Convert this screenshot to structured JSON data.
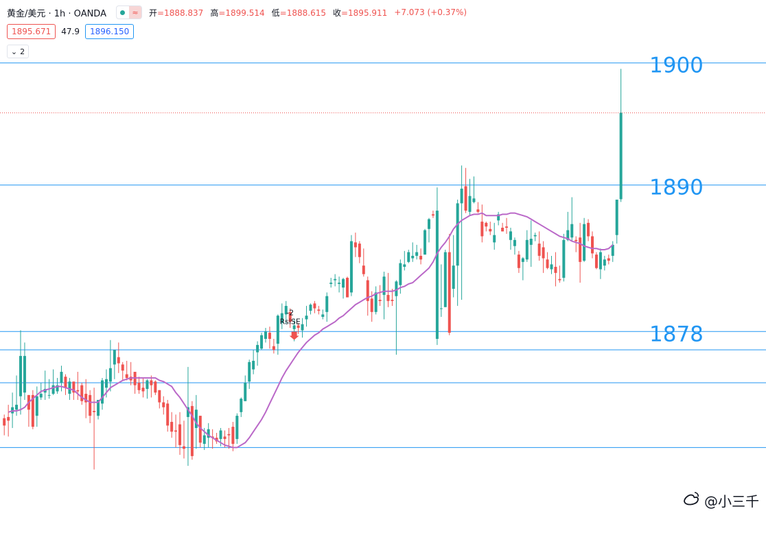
{
  "header": {
    "symbol": "黄金/美元 · 1h · OANDA",
    "ohlc": [
      {
        "label": "开",
        "value": "=1888.837"
      },
      {
        "label": "高",
        "value": "=1899.514"
      },
      {
        "label": "低",
        "value": "=1888.615"
      },
      {
        "label": "收",
        "value": "=1895.911"
      }
    ],
    "change": "+7.073 (+0.37%)"
  },
  "quote": {
    "bid": "1895.671",
    "spread": "47.9",
    "ask": "1896.150"
  },
  "collapse_count": "2",
  "watermark": "@小三千",
  "signal": {
    "count": "-2",
    "name": "RsiSE"
  },
  "colors": {
    "up": "#26a69a",
    "down": "#ef5350",
    "ma": "#ba68c8",
    "level": "#2196f3",
    "current": "#ef5350"
  },
  "chart_data": {
    "type": "candlestick",
    "symbol": "XAU/USD",
    "interval": "1h",
    "ylim": [
      1861.5,
      1901.5
    ],
    "current_price": 1895.911,
    "levels": [
      {
        "value": 1900,
        "label": "1900"
      },
      {
        "value": 1890,
        "label": "1890"
      },
      {
        "value": 1878,
        "label": "1878"
      },
      {
        "value": 1876.5,
        "label": ""
      },
      {
        "value": 1873.8,
        "label": ""
      },
      {
        "value": 1868.5,
        "label": ""
      }
    ],
    "candles": [
      [
        1870.9,
        1871.2,
        1869.5,
        1870.3
      ],
      [
        1871.0,
        1872.0,
        1869.4,
        1870.7
      ],
      [
        1871.3,
        1873.0,
        1870.1,
        1871.8
      ],
      [
        1871.6,
        1874.4,
        1871.1,
        1872.0
      ],
      [
        1872.7,
        1878.1,
        1871.2,
        1876.0
      ],
      [
        1873.0,
        1877.1,
        1872.4,
        1876.0
      ],
      [
        1872.8,
        1872.8,
        1870.2,
        1871.6
      ],
      [
        1872.8,
        1873.2,
        1870.0,
        1870.2
      ],
      [
        1871.1,
        1873.5,
        1870.2,
        1872.7
      ],
      [
        1872.6,
        1873.8,
        1872.4,
        1872.9
      ],
      [
        1873.0,
        1874.8,
        1872.4,
        1873.3
      ],
      [
        1872.8,
        1874.1,
        1872.5,
        1872.8
      ],
      [
        1872.9,
        1874.9,
        1872.8,
        1873.6
      ],
      [
        1873.1,
        1874.2,
        1872.9,
        1873.6
      ],
      [
        1873.8,
        1875.2,
        1873.1,
        1874.7
      ],
      [
        1874.3,
        1874.5,
        1872.8,
        1873.4
      ],
      [
        1872.9,
        1874.2,
        1872.4,
        1873.9
      ],
      [
        1873.9,
        1873.9,
        1872.4,
        1873.0
      ],
      [
        1873.2,
        1874.7,
        1872.4,
        1873.1
      ],
      [
        1873.6,
        1873.8,
        1872.0,
        1872.3
      ],
      [
        1872.9,
        1874.1,
        1870.9,
        1872.2
      ],
      [
        1872.8,
        1873.2,
        1870.5,
        1871.1
      ],
      [
        1871.5,
        1873.4,
        1866.7,
        1871.4
      ],
      [
        1871.1,
        1872.4,
        1870.8,
        1872.4
      ],
      [
        1872.1,
        1874.2,
        1871.6,
        1874.0
      ],
      [
        1873.4,
        1874.9,
        1872.6,
        1874.1
      ],
      [
        1873.9,
        1877.3,
        1873.1,
        1875.0
      ],
      [
        1875.3,
        1876.5,
        1874.1,
        1876.5
      ],
      [
        1875.9,
        1877.1,
        1874.6,
        1875.4
      ],
      [
        1875.3,
        1875.5,
        1874.0,
        1874.8
      ],
      [
        1874.5,
        1875.6,
        1874.0,
        1874.2
      ],
      [
        1874.3,
        1875.5,
        1873.6,
        1874.0
      ],
      [
        1874.7,
        1874.7,
        1872.9,
        1873.6
      ],
      [
        1873.8,
        1874.3,
        1872.9,
        1873.2
      ],
      [
        1873.4,
        1874.2,
        1872.6,
        1873.1
      ],
      [
        1873.3,
        1874.1,
        1872.5,
        1874.0
      ],
      [
        1874.0,
        1874.4,
        1872.6,
        1873.6
      ],
      [
        1873.9,
        1874.0,
        1872.8,
        1873.0
      ],
      [
        1873.2,
        1873.2,
        1871.7,
        1872.2
      ],
      [
        1872.2,
        1872.7,
        1871.2,
        1871.8
      ],
      [
        1872.1,
        1872.4,
        1869.8,
        1870.3
      ],
      [
        1870.6,
        1871.4,
        1869.3,
        1869.8
      ],
      [
        1869.9,
        1871.2,
        1868.5,
        1869.8
      ],
      [
        1870.4,
        1871.4,
        1867.9,
        1868.7
      ],
      [
        1868.6,
        1870.7,
        1867.6,
        1868.4
      ],
      [
        1871.0,
        1875.1,
        1867.0,
        1871.8
      ],
      [
        1871.9,
        1872.3,
        1867.5,
        1867.8
      ],
      [
        1870.1,
        1872.8,
        1868.4,
        1871.6
      ],
      [
        1871.1,
        1871.1,
        1868.5,
        1868.9
      ],
      [
        1868.8,
        1870.1,
        1868.3,
        1869.5
      ],
      [
        1869.3,
        1870.5,
        1868.5,
        1870.0
      ],
      [
        1869.4,
        1870.0,
        1868.4,
        1869.3
      ],
      [
        1869.3,
        1869.7,
        1868.8,
        1869.0
      ],
      [
        1869.2,
        1870.1,
        1868.6,
        1869.9
      ],
      [
        1869.4,
        1869.9,
        1868.5,
        1869.2
      ],
      [
        1869.6,
        1870.1,
        1868.4,
        1869.5
      ],
      [
        1870.2,
        1870.6,
        1868.2,
        1868.8
      ],
      [
        1869.2,
        1871.3,
        1868.8,
        1871.1
      ],
      [
        1871.4,
        1872.6,
        1871.0,
        1872.5
      ],
      [
        1872.3,
        1874.4,
        1872.3,
        1873.8
      ],
      [
        1873.9,
        1875.7,
        1873.3,
        1875.5
      ],
      [
        1874.9,
        1876.5,
        1874.5,
        1875.6
      ],
      [
        1876.3,
        1877.2,
        1875.2,
        1876.9
      ],
      [
        1876.6,
        1877.9,
        1876.5,
        1877.7
      ],
      [
        1877.4,
        1878.3,
        1877.1,
        1878.0
      ],
      [
        1877.9,
        1878.4,
        1876.6,
        1877.4
      ],
      [
        1876.8,
        1877.4,
        1876.2,
        1876.5
      ],
      [
        1877.0,
        1879.4,
        1876.1,
        1879.3
      ],
      [
        1878.7,
        1880.3,
        1878.2,
        1879.5
      ],
      [
        1879.4,
        1880.5,
        1878.6,
        1880.1
      ],
      [
        1879.6,
        1879.9,
        1878.3,
        1878.8
      ],
      [
        1878.2,
        1879.0,
        1877.2,
        1878.5
      ],
      [
        1878.5,
        1878.7,
        1877.8,
        1878.3
      ],
      [
        1878.1,
        1879.1,
        1877.5,
        1878.6
      ],
      [
        1879.0,
        1880.1,
        1878.4,
        1879.3
      ],
      [
        1879.7,
        1880.3,
        1879.4,
        1880.2
      ],
      [
        1880.3,
        1880.5,
        1879.5,
        1879.9
      ],
      [
        1879.8,
        1880.1,
        1879.4,
        1879.7
      ],
      [
        1879.2,
        1879.8,
        1879.0,
        1879.4
      ],
      [
        1879.6,
        1881.2,
        1878.8,
        1880.9
      ],
      [
        1881.9,
        1882.4,
        1881.6,
        1882.0
      ],
      [
        1882.2,
        1882.7,
        1881.7,
        1882.3
      ],
      [
        1881.9,
        1882.5,
        1881.2,
        1882.0
      ],
      [
        1881.6,
        1882.4,
        1880.7,
        1882.3
      ],
      [
        1882.4,
        1882.5,
        1880.8,
        1880.8
      ],
      [
        1881.2,
        1885.9,
        1880.9,
        1885.4
      ],
      [
        1885.3,
        1886.1,
        1884.1,
        1884.9
      ],
      [
        1885.2,
        1885.4,
        1883.6,
        1884.1
      ],
      [
        1883.4,
        1884.8,
        1882.5,
        1882.7
      ],
      [
        1882.2,
        1882.5,
        1879.3,
        1880.5
      ],
      [
        1880.7,
        1881.3,
        1878.8,
        1879.6
      ],
      [
        1879.6,
        1881.7,
        1879.4,
        1881.2
      ],
      [
        1880.6,
        1881.8,
        1880.1,
        1880.5
      ],
      [
        1881.0,
        1882.9,
        1879.0,
        1882.5
      ],
      [
        1881.0,
        1882.8,
        1880.0,
        1880.5
      ],
      [
        1880.6,
        1881.5,
        1880.1,
        1880.5
      ],
      [
        1880.9,
        1882.2,
        1876.1,
        1882.1
      ],
      [
        1881.8,
        1883.9,
        1881.1,
        1883.6
      ],
      [
        1883.3,
        1884.6,
        1883.0,
        1883.5
      ],
      [
        1883.7,
        1884.7,
        1883.6,
        1884.5
      ],
      [
        1884.0,
        1885.3,
        1883.7,
        1884.2
      ],
      [
        1884.2,
        1885.1,
        1883.9,
        1884.5
      ],
      [
        1884.2,
        1884.8,
        1883.5,
        1883.9
      ],
      [
        1884.3,
        1886.4,
        1884.3,
        1886.3
      ],
      [
        1886.4,
        1887.3,
        1885.3,
        1887.2
      ],
      [
        1887.6,
        1887.9,
        1887.3,
        1887.5
      ],
      [
        1877.4,
        1889.8,
        1876.9,
        1887.9
      ],
      [
        1879.9,
        1883.5,
        1879.2,
        1879.9
      ],
      [
        1880.0,
        1884.7,
        1880.0,
        1884.5
      ],
      [
        1884.5,
        1886.0,
        1877.7,
        1877.9
      ],
      [
        1881.5,
        1885.9,
        1880.8,
        1883.4
      ],
      [
        1883.4,
        1888.8,
        1880.1,
        1888.5
      ],
      [
        1888.5,
        1891.6,
        1880.6,
        1889.7
      ],
      [
        1889.9,
        1891.4,
        1887.7,
        1887.9
      ],
      [
        1887.8,
        1890.5,
        1887.5,
        1889.1
      ],
      [
        1888.6,
        1890.7,
        1888.5,
        1888.9
      ],
      [
        1888.0,
        1888.6,
        1887.7,
        1887.8
      ],
      [
        1887.0,
        1888.4,
        1885.3,
        1885.8
      ],
      [
        1886.9,
        1887.0,
        1886.2,
        1886.6
      ],
      [
        1886.4,
        1887.0,
        1885.9,
        1886.2
      ],
      [
        1885.3,
        1886.9,
        1884.7,
        1885.9
      ],
      [
        1887.1,
        1887.8,
        1886.7,
        1887.6
      ],
      [
        1886.5,
        1886.9,
        1886.2,
        1886.2
      ],
      [
        1886.6,
        1887.3,
        1886.0,
        1886.5
      ],
      [
        1885.5,
        1886.5,
        1884.7,
        1886.2
      ],
      [
        1885.0,
        1885.7,
        1884.3,
        1885.5
      ],
      [
        1884.3,
        1884.6,
        1882.8,
        1883.2
      ],
      [
        1883.7,
        1884.1,
        1882.2,
        1884.0
      ],
      [
        1883.9,
        1886.3,
        1883.7,
        1885.5
      ],
      [
        1885.1,
        1887.1,
        1883.3,
        1885.6
      ],
      [
        1885.8,
        1886.1,
        1885.4,
        1885.9
      ],
      [
        1885.2,
        1886.2,
        1883.8,
        1884.2
      ],
      [
        1884.9,
        1885.4,
        1882.8,
        1884.0
      ],
      [
        1883.9,
        1884.5,
        1883.1,
        1883.2
      ],
      [
        1883.1,
        1884.2,
        1882.7,
        1883.5
      ],
      [
        1883.3,
        1884.5,
        1881.7,
        1882.8
      ],
      [
        1882.3,
        1883.4,
        1882.0,
        1882.2
      ],
      [
        1882.4,
        1886.0,
        1882.1,
        1885.5
      ],
      [
        1885.5,
        1887.8,
        1885.4,
        1886.3
      ],
      [
        1885.7,
        1889.0,
        1885.4,
        1886.8
      ],
      [
        1885.5,
        1885.8,
        1884.5,
        1885.4
      ],
      [
        1885.7,
        1886.9,
        1882.0,
        1883.7
      ],
      [
        1883.8,
        1887.3,
        1883.7,
        1886.8
      ],
      [
        1886.9,
        1887.2,
        1885.4,
        1885.8
      ],
      [
        1885.8,
        1886.2,
        1884.0,
        1884.4
      ],
      [
        1884.3,
        1884.5,
        1883.1,
        1883.2
      ],
      [
        1883.1,
        1884.8,
        1882.3,
        1884.5
      ],
      [
        1883.4,
        1884.2,
        1883.0,
        1883.9
      ],
      [
        1884.0,
        1884.3,
        1883.5,
        1883.8
      ],
      [
        1884.2,
        1885.4,
        1883.7,
        1885.1
      ],
      [
        1885.9,
        1888.8,
        1885.2,
        1888.8
      ],
      [
        1888.837,
        1899.514,
        1888.615,
        1895.911
      ]
    ],
    "ma_start_index": 1,
    "ma": [
      1871.4,
      1871.5,
      1871.5,
      1871.6,
      1871.8,
      1872.2,
      1872.5,
      1872.8,
      1873.1,
      1873.2,
      1873.3,
      1873.4,
      1873.5,
      1873.5,
      1873.4,
      1873.3,
      1873.2,
      1872.9,
      1872.6,
      1872.4,
      1872.2,
      1872.2,
      1872.2,
      1872.6,
      1873.0,
      1873.4,
      1873.6,
      1873.8,
      1874.0,
      1874.1,
      1874.2,
      1874.2,
      1874.2,
      1874.2,
      1874.2,
      1874.2,
      1874.2,
      1874.0,
      1873.9,
      1873.7,
      1873.5,
      1873.0,
      1872.6,
      1872.1,
      1871.6,
      1871.1,
      1870.5,
      1870.1,
      1869.8,
      1869.5,
      1869.3,
      1869.1,
      1868.9,
      1868.7,
      1868.6,
      1868.5,
      1868.5,
      1868.7,
      1868.9,
      1869.3,
      1869.8,
      1870.3,
      1870.8,
      1871.4,
      1872.1,
      1872.8,
      1873.5,
      1874.2,
      1874.8,
      1875.3,
      1875.8,
      1876.3,
      1876.7,
      1877.1,
      1877.4,
      1877.7,
      1877.9,
      1878.2,
      1878.4,
      1878.6,
      1878.8,
      1879.1,
      1879.3,
      1879.6,
      1879.9,
      1880.2,
      1880.4,
      1880.6,
      1880.8,
      1880.9,
      1881.1,
      1881.2,
      1881.3,
      1881.3,
      1881.3,
      1881.4,
      1881.6,
      1881.7,
      1881.9,
      1882.0,
      1882.3,
      1882.6,
      1882.9,
      1883.2,
      1883.7,
      1884.4,
      1884.9,
      1885.3,
      1885.8,
      1886.4,
      1886.8,
      1887.1,
      1887.3,
      1887.5,
      1887.6,
      1887.6,
      1887.7,
      1887.5,
      1887.5,
      1887.5,
      1887.5,
      1887.6,
      1887.6,
      1887.7,
      1887.7,
      1887.6,
      1887.5,
      1887.4,
      1887.2,
      1887.0,
      1886.8,
      1886.6,
      1886.4,
      1886.2,
      1886.0,
      1885.8,
      1885.7,
      1885.6,
      1885.4,
      1885.3,
      1885.2,
      1885.0,
      1884.9,
      1884.8,
      1884.8,
      1884.7,
      1884.7,
      1884.8,
      1885.1
    ],
    "signal_index": 71
  }
}
